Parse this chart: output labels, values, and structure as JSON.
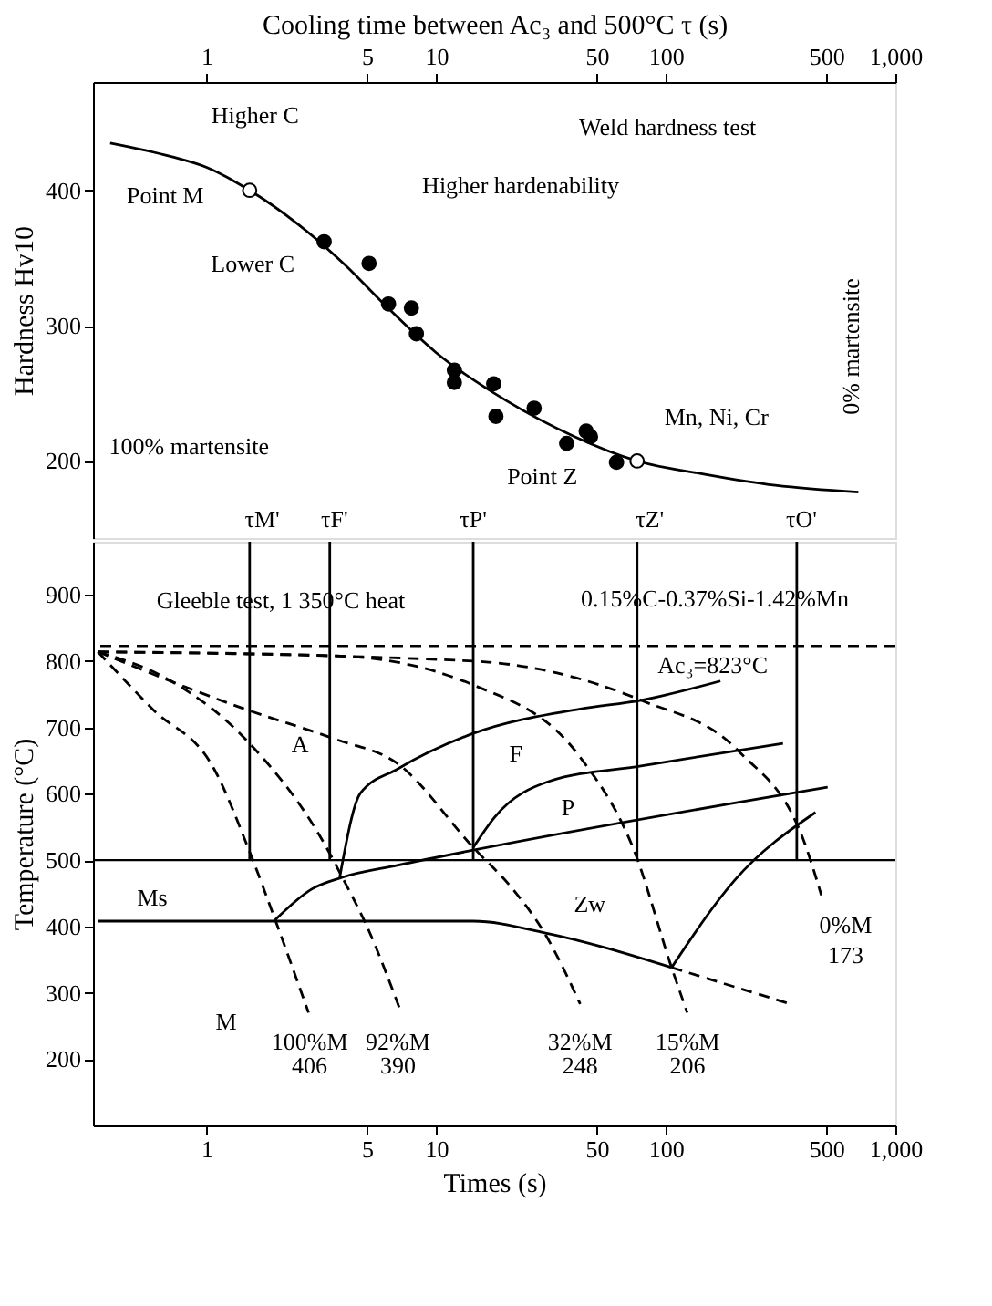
{
  "chart_data": [
    {
      "type": "line",
      "xlabel": "Cooling time between Ac₃ and 500°C τ (s)",
      "ylabel": "Hardness Hv10",
      "log": "x",
      "xlim": [
        0.32,
        1000
      ],
      "xticks": [
        1,
        5,
        10,
        50,
        100,
        500,
        {
          "value": 1000,
          "label": "1,000"
        }
      ],
      "ylim": [
        143,
        480
      ],
      "yticks": [
        200,
        300,
        400
      ],
      "grid": false,
      "series": [
        {
          "type": "line",
          "color": "#000000",
          "line_style": "solid",
          "x": [
            0.38,
            0.7,
            1.0,
            1.54,
            2.5,
            4,
            6,
            10,
            20,
            40,
            75,
            150,
            300,
            690
          ],
          "values": [
            435,
            425,
            417,
            400,
            375,
            345,
            315,
            280,
            245,
            218,
            200,
            190,
            182,
            177
          ]
        },
        {
          "type": "scatter",
          "color": "#000000",
          "marker": "circle",
          "x": [
            3.25,
            5.1,
            6.2,
            7.8,
            8.2,
            12,
            12,
            17.8,
            18.2,
            26.7,
            37,
            45,
            47,
            61
          ],
          "values": [
            362,
            346,
            316,
            313,
            294,
            267,
            258,
            257,
            233,
            239,
            213,
            222,
            218,
            199
          ]
        },
        {
          "type": "scatter",
          "color": "#ffffff",
          "marker": "circle",
          "x": [
            1.54,
            75
          ],
          "values": [
            400,
            200
          ]
        }
      ],
      "annotations": [
        "Higher C",
        "Lower C",
        "Point M",
        "Higher hardenability",
        "Weld hardness test",
        "100% martensite",
        "Mn, Ni, Cr",
        "Point Z",
        "0% martensite",
        "τM'",
        "τF'",
        "τP'",
        "τZ'",
        "τO'"
      ]
    },
    {
      "type": "line",
      "xlabel": "Times (s)",
      "ylabel": "Temperature (°C)",
      "log": "x",
      "xlim": [
        0.32,
        1000
      ],
      "xticks": [
        1,
        5,
        10,
        50,
        100,
        500,
        {
          "value": 1000,
          "label": "1,000"
        }
      ],
      "ylim": [
        100,
        980
      ],
      "yticks": [
        200,
        300,
        400,
        500,
        600,
        700,
        800,
        900
      ],
      "grid": false,
      "ref_lines": [
        {
          "axis": "y",
          "value": 823,
          "label": "Ac₃=823°C",
          "line_style": "dashed",
          "color": "#000000"
        },
        {
          "axis": "y",
          "value": 500,
          "line_style": "solid",
          "color": "#000000"
        }
      ],
      "series": [
        {
          "color": "#000000",
          "line_style": "dashed",
          "x": [
            0.336,
            0.58,
            1.08,
            1.55,
            1.99,
            2.78
          ],
          "values": [
            814,
            728,
            637,
            510,
            410,
            270
          ]
        },
        {
          "color": "#000000",
          "line_style": "dashed",
          "x": [
            0.336,
            0.7,
            1.5,
            3.44,
            3.9,
            4.98,
            6.97
          ],
          "values": [
            814,
            770,
            680,
            510,
            474,
            401,
            274
          ]
        },
        {
          "color": "#000000",
          "line_style": "dashed",
          "x": [
            0.336,
            1.46,
            3.66,
            6.76,
            14.5,
            21.6,
            29.4,
            42.4
          ],
          "values": [
            814,
            728,
            682,
            646,
            519,
            456,
            392,
            283
          ]
        },
        {
          "color": "#000000",
          "line_style": "dashed",
          "x": [
            0.336,
            3.66,
            14.5,
            42.4,
            73.6,
            106,
            124
          ],
          "values": [
            814,
            808,
            764,
            655,
            510,
            338,
            270
          ]
        },
        {
          "color": "#000000",
          "line_style": "dashed",
          "x": [
            0.336,
            14.5,
            78,
            208,
            409,
            476
          ],
          "values": [
            814,
            800,
            741,
            664,
            519,
            447
          ]
        },
        {
          "color": "#000000",
          "line_style": "solid",
          "x": [
            0.336,
            14.5,
            30,
            106
          ],
          "values": [
            408,
            408,
            390,
            338
          ]
        },
        {
          "color": "#000000",
          "line_style": "dashed",
          "x": [
            106,
            350
          ],
          "values": [
            338,
            283
          ]
        },
        {
          "color": "#000000",
          "line_style": "solid",
          "x": [
            1.99,
            2.86,
            3.9,
            6.76,
            14.5,
            507
          ],
          "values": [
            410,
            456,
            474,
            492,
            515,
            610
          ]
        },
        {
          "color": "#000000",
          "line_style": "solid",
          "x": [
            3.8,
            4.68,
            6.76,
            14.5,
            42.4,
            78,
            173
          ],
          "values": [
            474,
            601,
            637,
            691,
            728,
            741,
            770
          ]
        },
        {
          "color": "#000000",
          "line_style": "solid",
          "x": [
            14.5,
            18,
            31.2,
            78,
            324
          ],
          "values": [
            519,
            565,
            619,
            642,
            676
          ]
        },
        {
          "color": "#000000",
          "line_style": "solid",
          "x": [
            106,
            200,
            449
          ],
          "values": [
            338,
            470,
            572
          ]
        },
        {
          "color": "#000000",
          "line_style": "solid",
          "x": [
            1.54,
            1.54
          ],
          "values": [
            980,
            500
          ]
        },
        {
          "color": "#000000",
          "line_style": "solid",
          "x": [
            3.44,
            3.44
          ],
          "values": [
            980,
            500
          ]
        },
        {
          "color": "#000000",
          "line_style": "solid",
          "x": [
            14.5,
            14.5
          ],
          "values": [
            980,
            500
          ]
        },
        {
          "color": "#000000",
          "line_style": "solid",
          "x": [
            75,
            75
          ],
          "values": [
            980,
            500
          ]
        },
        {
          "color": "#000000",
          "line_style": "solid",
          "x": [
            372,
            372
          ],
          "values": [
            980,
            500
          ]
        }
      ],
      "annotations": [
        "Gleeble test, 1 350°C heat",
        "0.15%C-0.37%Si-1.42%Mn",
        "A",
        "F",
        "P",
        "Zw",
        "Ms",
        "M",
        "100%M",
        "406",
        "92%M",
        "390",
        "32%M",
        "248",
        "15%M",
        "206",
        "0%M",
        "173"
      ]
    }
  ]
}
